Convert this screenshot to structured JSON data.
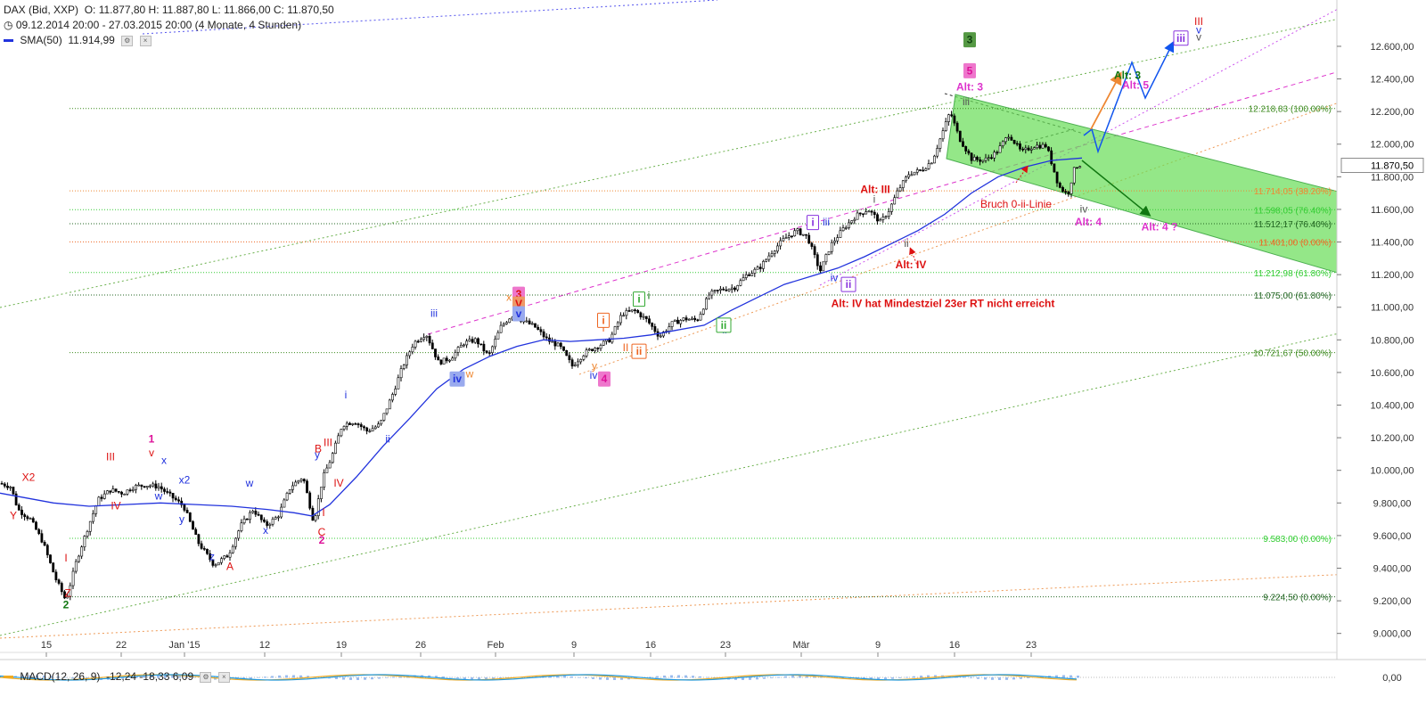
{
  "header": {
    "instrument": "DAX (Bid, XXP)",
    "ohlc": "O: 11.877,80  H: 11.887,80  L: 11.866,00  C: 11.870,50",
    "period": "09.12.2014 20:00 - 27.03.2015 20:00 (4 Monate, 4 Stunden)",
    "sma_label": "SMA(50)",
    "sma_value": "11.914,99",
    "macd_label": "MACD(12, 26, 9)",
    "macd_values": "-12,24   -18,33   6,09"
  },
  "colors": {
    "candle": "#000000",
    "sma": "#2233dd",
    "channel_green": "#6ab04c",
    "channel_fill": "#66dd55",
    "pink": "#dd33cc",
    "orange": "#ee8833",
    "blue_forecast": "#1155ee",
    "red": "#dd1111",
    "green_dark": "#117711"
  },
  "chart_data": {
    "type": "candlestick",
    "y_axis_ticks": [
      9000,
      9200,
      9400,
      9600,
      9800,
      10000,
      10200,
      10400,
      10600,
      10800,
      11000,
      11200,
      11400,
      11600,
      11800,
      12000,
      12200,
      12400,
      12600
    ],
    "y_axis_labels": [
      "9.000,00",
      "9.200,00",
      "9.400,00",
      "9.600,00",
      "9.800,00",
      "10.000,00",
      "10.200,00",
      "10.400,00",
      "10.600,00",
      "10.800,00",
      "11.000,00",
      "11.200,00",
      "11.400,00",
      "11.600,00",
      "11.800,00",
      "12.000,00",
      "12.200,00",
      "12.400,00",
      "12.600,00"
    ],
    "ylim": [
      8960,
      12720
    ],
    "x_tick_labels": [
      "15",
      "22",
      "Jan '15",
      "12",
      "19",
      "26",
      "Feb",
      "9",
      "16",
      "23",
      "Mär",
      "9",
      "16",
      "23"
    ],
    "last_price": "11.870,50",
    "price_levels": [
      {
        "value": 12218.83,
        "label": "12.218,83 (100.00%)",
        "color": "#3c8a1e"
      },
      {
        "value": 11714.05,
        "label": "11.714,05 (38.20%)",
        "color": "#ee8833"
      },
      {
        "value": 11598.05,
        "label": "11.598,05 (76.40%)",
        "color": "#33cc33"
      },
      {
        "value": 11512.17,
        "label": "11.512,17 (76.40%)",
        "color": "#226622"
      },
      {
        "value": 11401.0,
        "label": "11.401,00 (0.00%)",
        "color": "#ee6622"
      },
      {
        "value": 11212.98,
        "label": "11.212,98 (61.80%)",
        "color": "#33cc33"
      },
      {
        "value": 11075.0,
        "label": "11.075,00 (61.80%)",
        "color": "#226622"
      },
      {
        "value": 10721.67,
        "label": "10.721,67 (50.00%)",
        "color": "#3c8a1e"
      },
      {
        "value": 9583.0,
        "label": "9.583,00 (0.00%)",
        "color": "#33cc33"
      },
      {
        "value": 9224.5,
        "label": "9.224,50 (0.00%)",
        "color": "#226622"
      }
    ],
    "close_path": [
      [
        0,
        9920
      ],
      [
        12,
        9900
      ],
      [
        20,
        9760
      ],
      [
        34,
        9700
      ],
      [
        48,
        9560
      ],
      [
        62,
        9340
      ],
      [
        74,
        9200
      ],
      [
        86,
        9450
      ],
      [
        98,
        9640
      ],
      [
        110,
        9820
      ],
      [
        124,
        9880
      ],
      [
        138,
        9860
      ],
      [
        150,
        9900
      ],
      [
        164,
        9910
      ],
      [
        178,
        9900
      ],
      [
        192,
        9840
      ],
      [
        206,
        9780
      ],
      [
        222,
        9560
      ],
      [
        240,
        9420
      ],
      [
        256,
        9480
      ],
      [
        270,
        9660
      ],
      [
        284,
        9760
      ],
      [
        298,
        9660
      ],
      [
        312,
        9720
      ],
      [
        326,
        9900
      ],
      [
        340,
        9960
      ],
      [
        352,
        9680
      ],
      [
        362,
        9950
      ],
      [
        372,
        10080
      ],
      [
        384,
        10280
      ],
      [
        398,
        10300
      ],
      [
        412,
        10240
      ],
      [
        426,
        10280
      ],
      [
        440,
        10460
      ],
      [
        452,
        10640
      ],
      [
        464,
        10780
      ],
      [
        478,
        10840
      ],
      [
        492,
        10660
      ],
      [
        506,
        10690
      ],
      [
        520,
        10780
      ],
      [
        534,
        10800
      ],
      [
        548,
        10700
      ],
      [
        562,
        10880
      ],
      [
        574,
        10950
      ],
      [
        586,
        10920
      ],
      [
        600,
        10880
      ],
      [
        614,
        10800
      ],
      [
        628,
        10760
      ],
      [
        642,
        10640
      ],
      [
        656,
        10720
      ],
      [
        670,
        10760
      ],
      [
        684,
        10800
      ],
      [
        698,
        10960
      ],
      [
        712,
        10980
      ],
      [
        726,
        10920
      ],
      [
        740,
        10820
      ],
      [
        754,
        10900
      ],
      [
        768,
        10930
      ],
      [
        782,
        10920
      ],
      [
        796,
        11080
      ],
      [
        810,
        11110
      ],
      [
        824,
        11120
      ],
      [
        838,
        11200
      ],
      [
        852,
        11240
      ],
      [
        866,
        11340
      ],
      [
        880,
        11420
      ],
      [
        894,
        11470
      ],
      [
        906,
        11430
      ],
      [
        920,
        11220
      ],
      [
        932,
        11380
      ],
      [
        946,
        11480
      ],
      [
        960,
        11560
      ],
      [
        974,
        11600
      ],
      [
        988,
        11520
      ],
      [
        998,
        11600
      ],
      [
        1008,
        11720
      ],
      [
        1020,
        11820
      ],
      [
        1034,
        11840
      ],
      [
        1046,
        11900
      ],
      [
        1058,
        12080
      ],
      [
        1066,
        12200
      ],
      [
        1076,
        12040
      ],
      [
        1090,
        11910
      ],
      [
        1104,
        11900
      ],
      [
        1118,
        11950
      ],
      [
        1132,
        12060
      ],
      [
        1146,
        11950
      ],
      [
        1160,
        11990
      ],
      [
        1174,
        11990
      ],
      [
        1188,
        11740
      ],
      [
        1198,
        11690
      ],
      [
        1206,
        11860
      ],
      [
        1214,
        11880
      ]
    ],
    "sma_path": [
      [
        0,
        9860
      ],
      [
        30,
        9830
      ],
      [
        60,
        9800
      ],
      [
        100,
        9780
      ],
      [
        140,
        9790
      ],
      [
        180,
        9800
      ],
      [
        220,
        9790
      ],
      [
        260,
        9780
      ],
      [
        300,
        9760
      ],
      [
        330,
        9740
      ],
      [
        350,
        9720
      ],
      [
        370,
        9790
      ],
      [
        400,
        9960
      ],
      [
        430,
        10150
      ],
      [
        460,
        10320
      ],
      [
        490,
        10500
      ],
      [
        520,
        10620
      ],
      [
        550,
        10700
      ],
      [
        580,
        10760
      ],
      [
        610,
        10800
      ],
      [
        640,
        10790
      ],
      [
        670,
        10800
      ],
      [
        700,
        10810
      ],
      [
        730,
        10830
      ],
      [
        760,
        10860
      ],
      [
        790,
        10890
      ],
      [
        820,
        10980
      ],
      [
        850,
        11060
      ],
      [
        880,
        11140
      ],
      [
        910,
        11190
      ],
      [
        940,
        11240
      ],
      [
        970,
        11310
      ],
      [
        1000,
        11390
      ],
      [
        1030,
        11470
      ],
      [
        1060,
        11570
      ],
      [
        1090,
        11700
      ],
      [
        1120,
        11800
      ],
      [
        1150,
        11860
      ],
      [
        1180,
        11900
      ],
      [
        1214,
        11915
      ]
    ],
    "annotations": [
      {
        "text": "X2",
        "x": 32,
        "y": 9935,
        "color": "#dd1111"
      },
      {
        "text": "Y",
        "x": 15,
        "y": 9700,
        "color": "#dd1111"
      },
      {
        "text": "I",
        "x": 74,
        "y": 9440,
        "color": "#dd1111"
      },
      {
        "text": "Z",
        "x": 76,
        "y": 9225,
        "color": "#dd1111"
      },
      {
        "text": "2",
        "x": 74,
        "y": 9155,
        "color": "#117711"
      },
      {
        "text": "III",
        "x": 124,
        "y": 10060,
        "color": "#dd1111"
      },
      {
        "text": "IV",
        "x": 130,
        "y": 9760,
        "color": "#dd1111"
      },
      {
        "text": "1",
        "x": 170,
        "y": 10170,
        "color": "#dd1199"
      },
      {
        "text": "v",
        "x": 170,
        "y": 10085,
        "color": "#dd1111"
      },
      {
        "text": "x",
        "x": 184,
        "y": 10040,
        "color": "#2233dd"
      },
      {
        "text": "w",
        "x": 178,
        "y": 9820,
        "color": "#2233dd"
      },
      {
        "text": "x2",
        "x": 207,
        "y": 9920,
        "color": "#2233dd"
      },
      {
        "text": "y",
        "x": 204,
        "y": 9680,
        "color": "#2233dd"
      },
      {
        "text": "w",
        "x": 280,
        "y": 9900,
        "color": "#2233dd"
      },
      {
        "text": "x",
        "x": 298,
        "y": 9610,
        "color": "#2233dd"
      },
      {
        "text": "z",
        "x": 238,
        "y": 9450,
        "color": "#2233dd"
      },
      {
        "text": "A",
        "x": 258,
        "y": 9390,
        "color": "#dd1111"
      },
      {
        "text": "B",
        "x": 357,
        "y": 10110,
        "color": "#dd1111"
      },
      {
        "text": "y",
        "x": 356,
        "y": 10075,
        "color": "#2233dd"
      },
      {
        "text": "III",
        "x": 368,
        "y": 10150,
        "color": "#dd1111"
      },
      {
        "text": "IV",
        "x": 380,
        "y": 9900,
        "color": "#dd1111"
      },
      {
        "text": "I",
        "x": 363,
        "y": 9720,
        "color": "#dd1111"
      },
      {
        "text": "C",
        "x": 361,
        "y": 9600,
        "color": "#dd1111"
      },
      {
        "text": "2",
        "x": 361,
        "y": 9550,
        "color": "#dd1199"
      },
      {
        "text": "i",
        "x": 388,
        "y": 10440,
        "color": "#2233dd"
      },
      {
        "text": "ii",
        "x": 435,
        "y": 10170,
        "color": "#2233dd"
      },
      {
        "text": "iii",
        "x": 487,
        "y": 10940,
        "color": "#2233dd"
      },
      {
        "text": "w",
        "x": 527,
        "y": 10570,
        "color": "#ee8833"
      },
      {
        "text": "x",
        "x": 571,
        "y": 11040,
        "color": "#ee8833"
      },
      {
        "text": "y",
        "x": 667,
        "y": 10620,
        "color": "#ee8833"
      },
      {
        "text": "iv",
        "x": 666,
        "y": 10560,
        "color": "#2233dd"
      },
      {
        "text": "I",
        "x": 677,
        "y": 10850,
        "color": "#ee6622"
      },
      {
        "text": "II",
        "x": 702,
        "y": 10730,
        "color": "#ee6622"
      },
      {
        "text": "i",
        "x": 728,
        "y": 11050,
        "color": "#117711"
      },
      {
        "text": "ii",
        "x": 813,
        "y": 10840,
        "color": "#2233dd"
      },
      {
        "text": "iii",
        "x": 927,
        "y": 11500,
        "color": "#2233dd"
      },
      {
        "text": "iv",
        "x": 936,
        "y": 11160,
        "color": "#2233dd"
      },
      {
        "text": "Alt: III",
        "x": 982,
        "y": 11700,
        "color": "#dd1111"
      },
      {
        "text": "i",
        "x": 981,
        "y": 11640,
        "color": "#555555"
      },
      {
        "text": "ii",
        "x": 1017,
        "y": 11370,
        "color": "#555555"
      },
      {
        "text": "Alt: IV",
        "x": 1022,
        "y": 11240,
        "color": "#dd1111"
      },
      {
        "text": "Alt: IV hat Mindestziel 23er RT nicht erreicht",
        "x": 1058,
        "y": 11000,
        "color": "#dd1111"
      },
      {
        "text": "Alt: 3",
        "x": 1088,
        "y": 12330,
        "color": "#dd33cc"
      },
      {
        "text": "iii",
        "x": 1084,
        "y": 12240,
        "color": "#555555"
      },
      {
        "text": "Bruch 0-ii-Linie",
        "x": 1140,
        "y": 11610,
        "color": "#dd1111"
      },
      {
        "text": "iv",
        "x": 1216,
        "y": 11580,
        "color": "#555555"
      },
      {
        "text": "Alt: 4",
        "x": 1221,
        "y": 11500,
        "color": "#dd33cc"
      },
      {
        "text": "Alt: 3",
        "x": 1265,
        "y": 12400,
        "color": "#117711"
      },
      {
        "text": "Alt: 5",
        "x": 1274,
        "y": 12340,
        "color": "#dd33cc"
      },
      {
        "text": "Alt: 4 ?",
        "x": 1301,
        "y": 11470,
        "color": "#dd33cc"
      },
      {
        "text": "III",
        "x": 1345,
        "y": 12730,
        "color": "#dd1111"
      },
      {
        "text": "v",
        "x": 1345,
        "y": 12680,
        "color": "#2233dd"
      },
      {
        "text": "v",
        "x": 1345,
        "y": 12635,
        "color": "#555555"
      }
    ],
    "badges": [
      {
        "text": "3",
        "x": 582,
        "y": 11080,
        "fill": "#ee77cc",
        "stroke": "#ee77cc",
        "color": "#dd1111"
      },
      {
        "text": "V",
        "x": 582,
        "y": 11020,
        "fill": "#ee9966",
        "stroke": "#ee9966",
        "color": "#dd1111"
      },
      {
        "text": "v",
        "x": 582,
        "y": 10960,
        "fill": "#99aaee",
        "stroke": "#99aaee",
        "color": "#2233dd"
      },
      {
        "text": "iv",
        "x": 513,
        "y": 10560,
        "fill": "#99aaee",
        "stroke": "#99aaee",
        "color": "#2233dd"
      },
      {
        "text": "4",
        "x": 678,
        "y": 10560,
        "fill": "#ee77cc",
        "stroke": "#ee77cc",
        "color": "#dd1199"
      },
      {
        "text": "i",
        "x": 677,
        "y": 10920,
        "fill": "#ffffff",
        "stroke": "#ee6622",
        "color": "#ee6622"
      },
      {
        "text": "ii",
        "x": 717,
        "y": 10730,
        "fill": "#ffffff",
        "stroke": "#ee6622",
        "color": "#ee6622"
      },
      {
        "text": "i",
        "x": 717,
        "y": 11050,
        "fill": "#ffffff",
        "stroke": "#33aa33",
        "color": "#33aa33"
      },
      {
        "text": "ii",
        "x": 812,
        "y": 10890,
        "fill": "#ffffff",
        "stroke": "#33aa33",
        "color": "#33aa33"
      },
      {
        "text": "i",
        "x": 912,
        "y": 11520,
        "fill": "#ffffff",
        "stroke": "#8833dd",
        "color": "#8833dd"
      },
      {
        "text": "ii",
        "x": 952,
        "y": 11140,
        "fill": "#ffffff",
        "stroke": "#8833dd",
        "color": "#8833dd"
      },
      {
        "text": "3",
        "x": 1088,
        "y": 12640,
        "fill": "#559944",
        "stroke": "#559944",
        "color": "#114411"
      },
      {
        "text": "5",
        "x": 1088,
        "y": 12450,
        "fill": "#ee77cc",
        "stroke": "#ee77cc",
        "color": "#dd1199"
      },
      {
        "text": "iii",
        "x": 1325,
        "y": 12650,
        "fill": "#ffffff",
        "stroke": "#8833dd",
        "color": "#8833dd"
      }
    ],
    "macd": {
      "label": "MACD(12, 26, 9)",
      "values": [
        "-12,24",
        "-18,33",
        "6,09"
      ],
      "axis_label": "0,00"
    }
  }
}
